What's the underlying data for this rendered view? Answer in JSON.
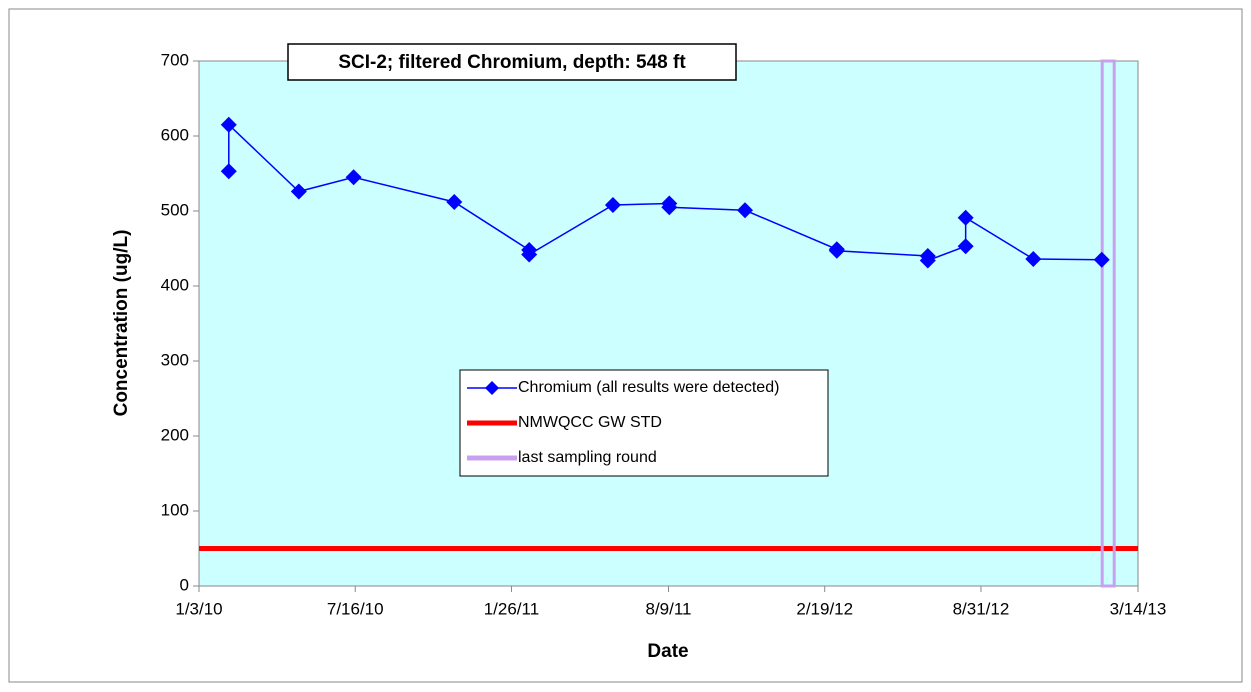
{
  "chart_data": {
    "type": "line",
    "title": "SCI-2;  filtered Chromium, depth: 548 ft",
    "x_label": "Date",
    "y_label": "Concentration (ug/L)",
    "xlim": [
      "2010-01-03",
      "2013-03-14"
    ],
    "xticks": [
      {
        "value": "2010-01-03",
        "label": "1/3/10"
      },
      {
        "value": "2010-07-16",
        "label": "7/16/10"
      },
      {
        "value": "2011-01-26",
        "label": "1/26/11"
      },
      {
        "value": "2011-08-09",
        "label": "8/9/11"
      },
      {
        "value": "2012-02-19",
        "label": "2/19/12"
      },
      {
        "value": "2012-08-31",
        "label": "8/31/12"
      },
      {
        "value": "2013-03-14",
        "label": "3/14/13"
      }
    ],
    "ylim": [
      0,
      700
    ],
    "yticks": [
      0,
      100,
      200,
      300,
      400,
      500,
      600,
      700
    ],
    "grid": false,
    "legend": "center",
    "x": [
      "2010-02-09",
      "2010-02-09",
      "2010-05-07",
      "2010-07-14",
      "2010-11-16",
      "2011-02-17",
      "2011-02-17",
      "2011-06-01",
      "2011-08-10",
      "2011-08-10",
      "2011-11-12",
      "2012-03-05",
      "2012-03-05",
      "2012-06-26",
      "2012-06-26",
      "2012-08-12",
      "2012-08-12",
      "2012-11-04",
      "2013-01-28"
    ],
    "series": [
      {
        "name": "Chromium (all results were detected)",
        "color": "#0000ff",
        "values": [
          553,
          615,
          526,
          545,
          512,
          448,
          442,
          508,
          510,
          505,
          501,
          449,
          447,
          440,
          434,
          453,
          491,
          436,
          435
        ]
      }
    ],
    "reference_lines": [
      {
        "name": "NMWQCC GW STD",
        "color": "#ff0000",
        "value": 50
      }
    ],
    "vertical_lines": [
      {
        "name": "last sampling round",
        "color": "#c8a0f0",
        "x": "2013-02-05"
      }
    ]
  }
}
